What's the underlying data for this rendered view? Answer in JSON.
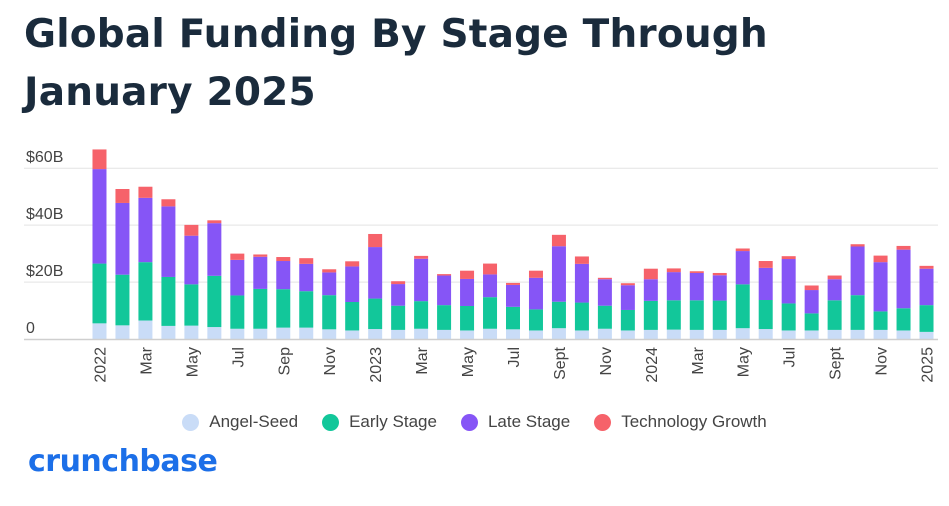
{
  "title": "Global Funding By Stage Through January 2025",
  "brand": "crunchbase",
  "chart_data": {
    "type": "bar",
    "stacked": true,
    "ylim": [
      0,
      65
    ],
    "y_ticks": [
      {
        "value": 0,
        "label": "0"
      },
      {
        "value": 20,
        "label": "$20B"
      },
      {
        "value": 40,
        "label": "$40B"
      },
      {
        "value": 60,
        "label": "$60B"
      }
    ],
    "x_tick_labels": [
      {
        "index": 0,
        "label": "2022"
      },
      {
        "index": 2,
        "label": "Mar"
      },
      {
        "index": 4,
        "label": "May"
      },
      {
        "index": 6,
        "label": "Jul"
      },
      {
        "index": 8,
        "label": "Sep"
      },
      {
        "index": 10,
        "label": "Nov"
      },
      {
        "index": 12,
        "label": "2023"
      },
      {
        "index": 14,
        "label": "Mar"
      },
      {
        "index": 16,
        "label": "May"
      },
      {
        "index": 18,
        "label": "Jul"
      },
      {
        "index": 20,
        "label": "Sept"
      },
      {
        "index": 22,
        "label": "Nov"
      },
      {
        "index": 24,
        "label": "2024"
      },
      {
        "index": 26,
        "label": "Mar"
      },
      {
        "index": 28,
        "label": "May"
      },
      {
        "index": 30,
        "label": "Jul"
      },
      {
        "index": 32,
        "label": "Sept"
      },
      {
        "index": 34,
        "label": "Nov"
      },
      {
        "index": 36,
        "label": "2025"
      }
    ],
    "categories": [
      "Jan 2022",
      "Feb 2022",
      "Mar 2022",
      "Apr 2022",
      "May 2022",
      "Jun 2022",
      "Jul 2022",
      "Aug 2022",
      "Sep 2022",
      "Oct 2022",
      "Nov 2022",
      "Dec 2022",
      "Jan 2023",
      "Feb 2023",
      "Mar 2023",
      "Apr 2023",
      "May 2023",
      "Jun 2023",
      "Jul 2023",
      "Aug 2023",
      "Sep 2023",
      "Oct 2023",
      "Nov 2023",
      "Dec 2023",
      "Jan 2024",
      "Feb 2024",
      "Mar 2024",
      "Apr 2024",
      "May 2024",
      "Jun 2024",
      "Jul 2024",
      "Aug 2024",
      "Sep 2024",
      "Oct 2024",
      "Nov 2024",
      "Dec 2024",
      "Jan 2025"
    ],
    "series": [
      {
        "name": "Angel-Seed",
        "color": "#c9dcf7",
        "values": [
          5.5,
          4.8,
          6.5,
          4.6,
          4.7,
          4.2,
          3.6,
          3.6,
          4.0,
          4.0,
          3.4,
          3.0,
          3.5,
          3.2,
          3.6,
          3.2,
          3.0,
          3.6,
          3.4,
          3.0,
          3.8,
          3.0,
          3.6,
          3.0,
          3.2,
          3.3,
          3.2,
          3.2,
          3.8,
          3.5,
          3.0,
          3.0,
          3.2,
          3.2,
          3.2,
          3.0,
          2.5
        ]
      },
      {
        "name": "Early Stage",
        "color": "#12c79a",
        "values": [
          21.0,
          17.8,
          20.5,
          17.2,
          14.5,
          18.0,
          11.7,
          14.0,
          13.5,
          12.8,
          12.0,
          10.0,
          10.7,
          8.5,
          9.7,
          8.7,
          8.6,
          11.1,
          7.9,
          7.4,
          9.3,
          9.8,
          8.1,
          7.2,
          10.2,
          10.3,
          10.4,
          10.3,
          15.4,
          10.2,
          9.5,
          6.0,
          10.4,
          12.2,
          6.5,
          7.8,
          9.4
        ]
      },
      {
        "name": "Late Stage",
        "color": "#8655f6",
        "values": [
          33.2,
          25.2,
          22.6,
          24.8,
          17.1,
          18.5,
          12.5,
          11.3,
          9.9,
          9.6,
          8.0,
          12.5,
          18.1,
          7.6,
          14.9,
          10.4,
          9.5,
          8.0,
          7.7,
          11.1,
          19.5,
          13.6,
          9.3,
          8.7,
          7.6,
          9.9,
          9.6,
          8.9,
          11.7,
          11.3,
          15.6,
          8.2,
          7.4,
          17.1,
          17.3,
          20.6,
          12.8
        ]
      },
      {
        "name": "Technology Growth",
        "color": "#f6626a",
        "values": [
          6.9,
          4.9,
          3.9,
          2.5,
          3.8,
          1.0,
          2.2,
          0.8,
          1.4,
          2.0,
          1.1,
          1.8,
          4.6,
          1.0,
          1.0,
          0.5,
          2.9,
          3.8,
          0.7,
          2.5,
          4.0,
          2.6,
          0.5,
          0.7,
          3.7,
          1.3,
          0.6,
          0.8,
          0.9,
          2.4,
          1.0,
          1.6,
          1.3,
          0.8,
          2.3,
          1.3,
          1.0
        ]
      }
    ]
  }
}
